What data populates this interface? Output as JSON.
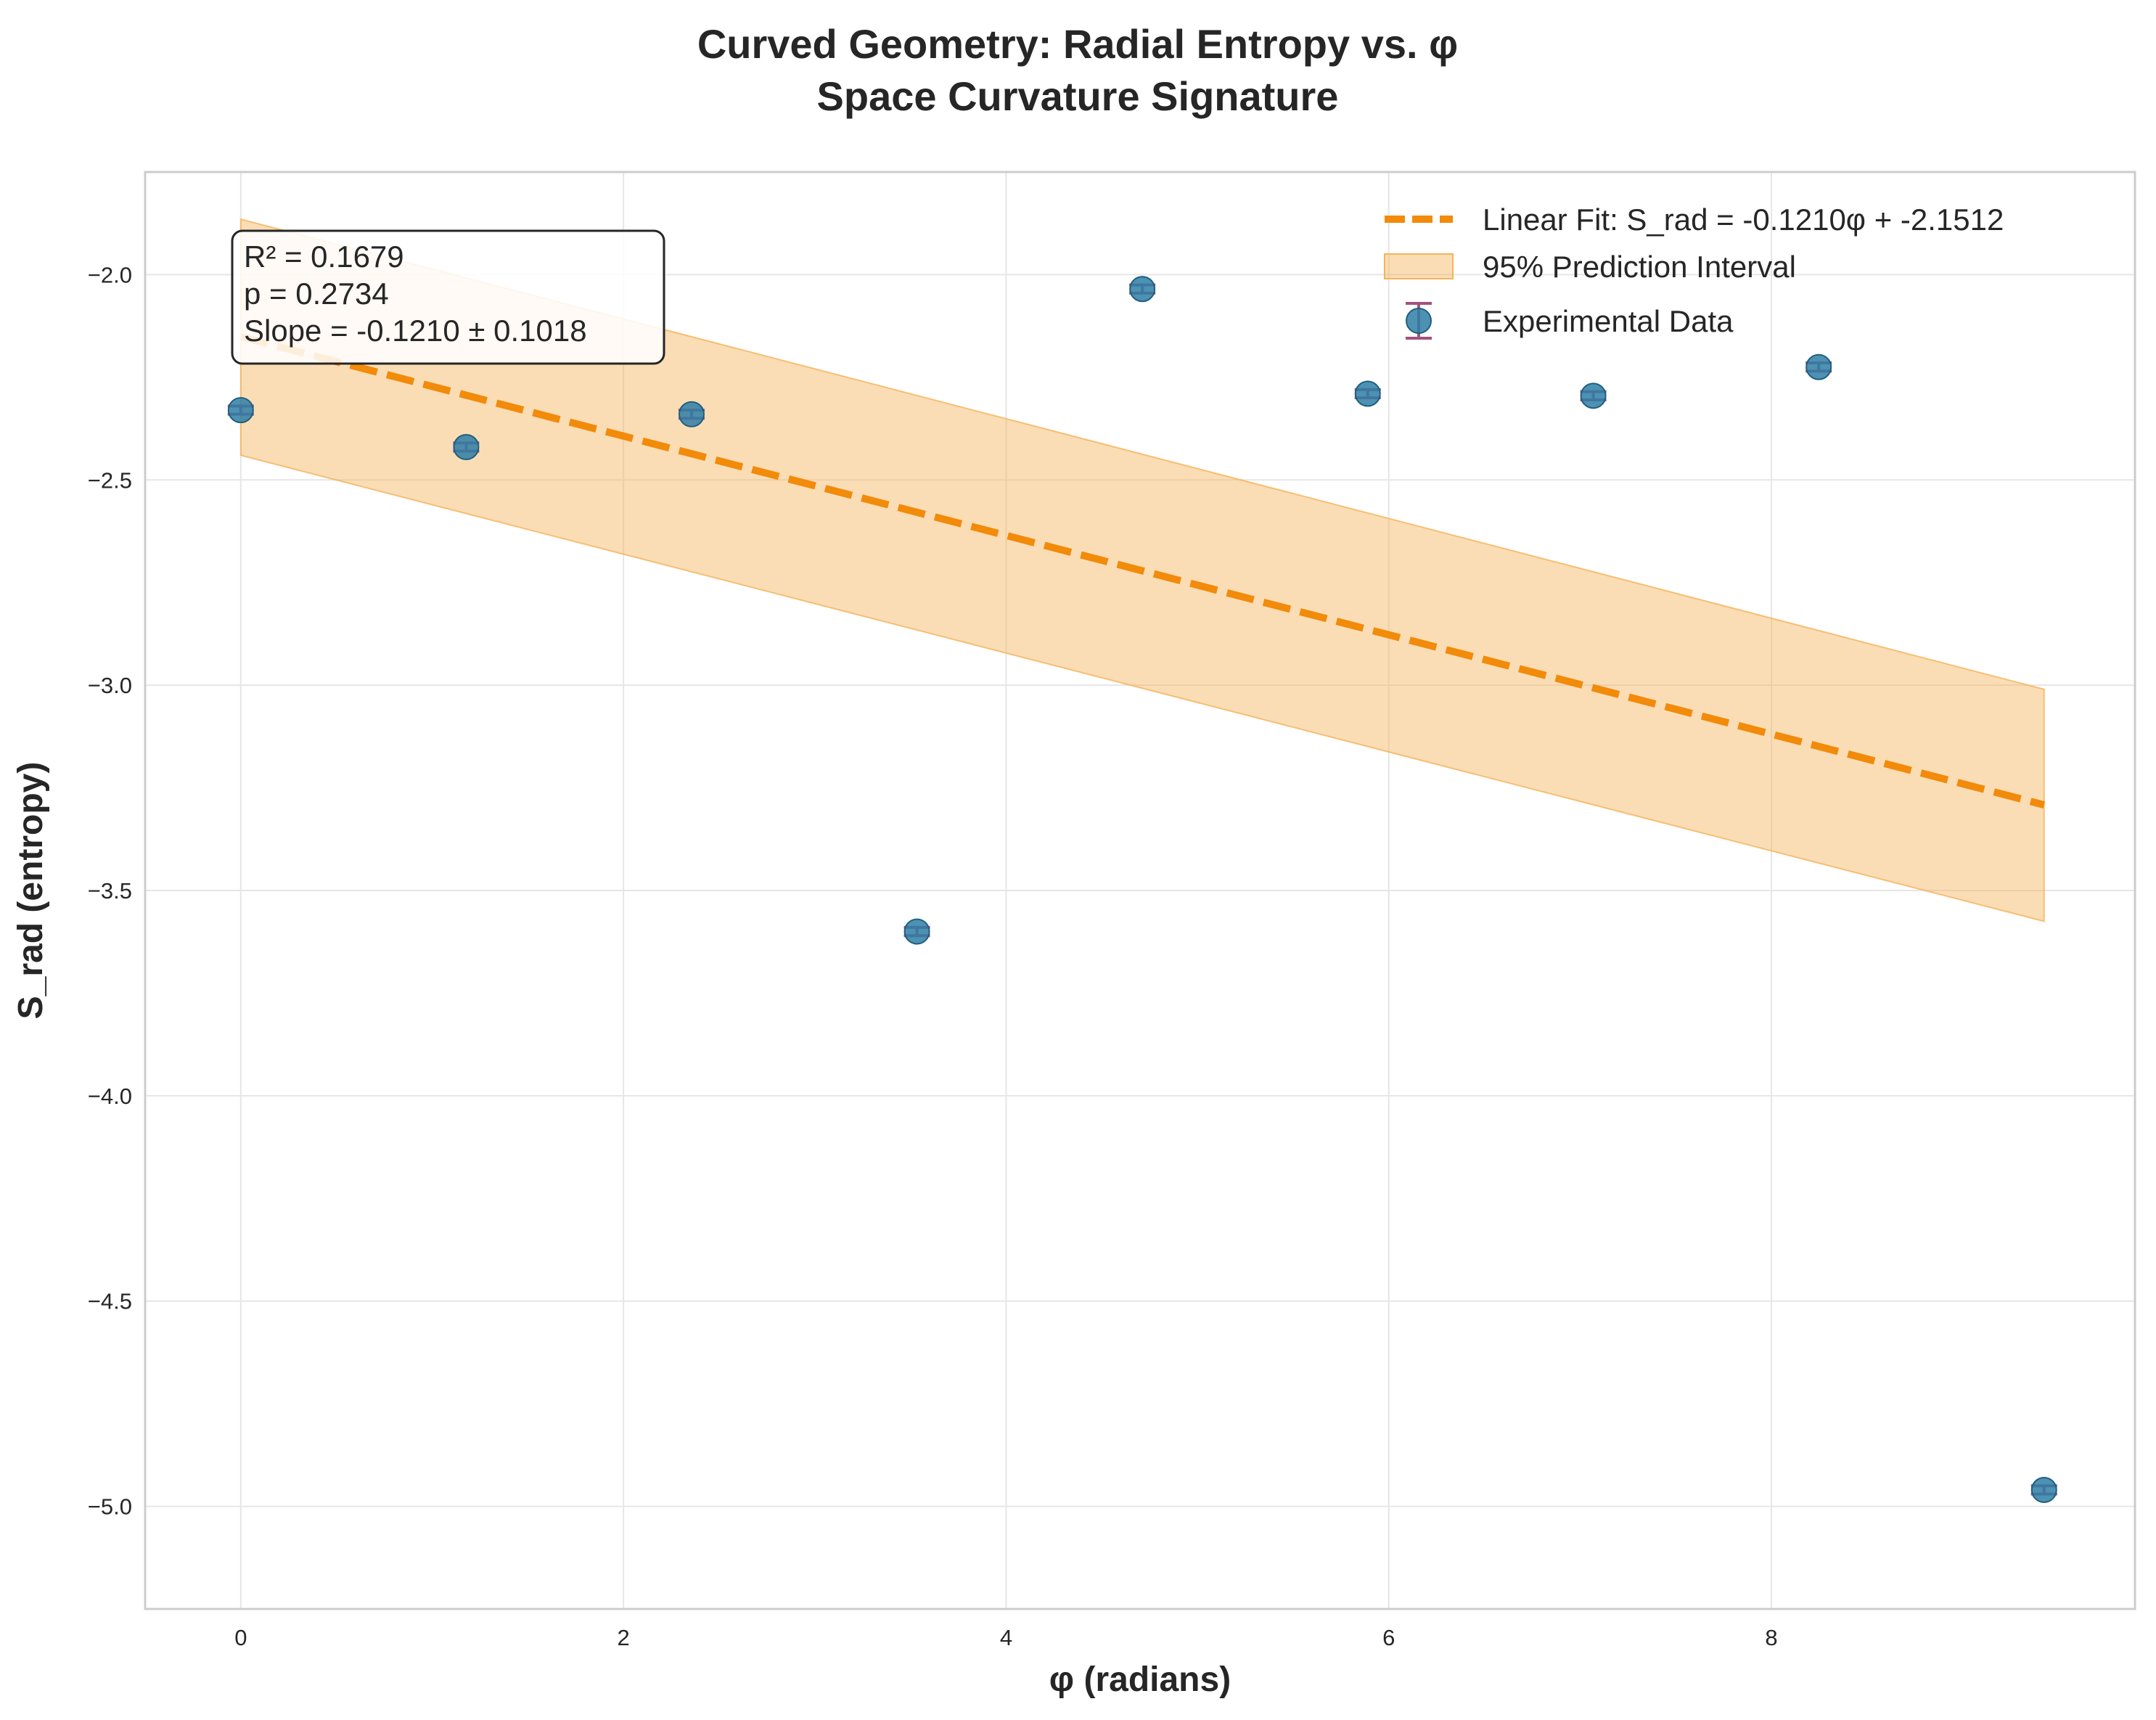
{
  "chart_data": {
    "type": "scatter",
    "title": [
      "Curved Geometry: Radial Entropy vs. φ",
      "Space Curvature Signature"
    ],
    "xlabel": "φ (radians)",
    "ylabel": "S_rad (entropy)",
    "xlim": [
      -0.5,
      9.9
    ],
    "ylim": [
      -5.25,
      -1.75
    ],
    "xticks": [
      0,
      2,
      4,
      6,
      8
    ],
    "yticks": [
      -5.0,
      -4.5,
      -4.0,
      -3.5,
      -3.0,
      -2.5,
      -2.0
    ],
    "xtick_labels": [
      "0",
      "2",
      "4",
      "6",
      "8"
    ],
    "ytick_labels": [
      "−5.0",
      "−4.5",
      "−4.0",
      "−3.5",
      "−3.0",
      "−2.5",
      "−2.0"
    ],
    "grid": true,
    "legend_position": "top-right",
    "series": [
      {
        "name": "Experimental Data",
        "kind": "errorbar-scatter",
        "color": "#2e7ea6",
        "errcolor": "#a2527e",
        "x": [
          0.0,
          1.178,
          2.356,
          3.534,
          4.712,
          5.89,
          7.069,
          8.247,
          9.425
        ],
        "y": [
          -2.33,
          -2.42,
          -2.34,
          -3.6,
          -2.035,
          -2.29,
          -2.295,
          -2.225,
          -4.96
        ],
        "yerr": [
          0.01,
          0.01,
          0.01,
          0.01,
          0.01,
          0.01,
          0.01,
          0.01,
          0.01
        ]
      },
      {
        "name": "Linear Fit: S_rad = -0.1210φ + -2.1512",
        "kind": "line",
        "color": "#f28a0a",
        "slope": -0.121,
        "intercept": -2.1512,
        "x_range": [
          0.0,
          9.425
        ]
      },
      {
        "name": "95% Prediction Interval",
        "kind": "band",
        "color": "#f5b35a",
        "x": [
          0.0,
          9.425
        ],
        "lower": [
          -2.44,
          -3.575
        ],
        "upper": [
          -1.865,
          -3.01
        ]
      }
    ],
    "annotation": [
      "R² = 0.1679",
      "p = 0.2734",
      "Slope = -0.1210 ± 0.1018"
    ]
  }
}
